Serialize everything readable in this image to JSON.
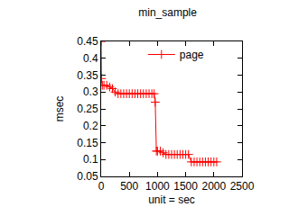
{
  "chart_data": {
    "type": "line",
    "title": "min_sample",
    "x_label": "unit = sec",
    "y_label": "msec",
    "xlim": [
      0,
      2500
    ],
    "xticks": [
      0,
      500,
      1000,
      1500,
      2000,
      2500
    ],
    "ylim": [
      0.05,
      0.45
    ],
    "yticks": [
      0.05,
      0.1,
      0.15,
      0.2,
      0.25,
      0.3,
      0.35,
      0.4,
      0.45
    ],
    "grid": false,
    "legend": "top",
    "series": [
      {
        "name": "page",
        "color": "#ff0000",
        "marker": "plus",
        "line_style": "solid",
        "x": [
          0,
          5,
          20,
          50,
          100,
          150,
          200,
          250,
          300,
          350,
          400,
          450,
          500,
          550,
          600,
          650,
          700,
          750,
          800,
          850,
          900,
          940,
          960,
          980,
          1000,
          1050,
          1100,
          1150,
          1200,
          1250,
          1300,
          1350,
          1400,
          1450,
          1500,
          1550,
          1600,
          1650,
          1700,
          1750,
          1800,
          1850,
          1900,
          1950,
          2000,
          2050
        ],
        "values": [
          0.45,
          0.34,
          0.32,
          0.32,
          0.32,
          0.315,
          0.31,
          0.3,
          0.295,
          0.295,
          0.295,
          0.295,
          0.295,
          0.295,
          0.295,
          0.295,
          0.295,
          0.295,
          0.295,
          0.295,
          0.295,
          0.295,
          0.27,
          0.125,
          0.125,
          0.125,
          0.12,
          0.115,
          0.115,
          0.115,
          0.115,
          0.115,
          0.115,
          0.115,
          0.115,
          0.115,
          0.093,
          0.093,
          0.093,
          0.093,
          0.093,
          0.093,
          0.093,
          0.093,
          0.093,
          0.093
        ]
      }
    ]
  }
}
